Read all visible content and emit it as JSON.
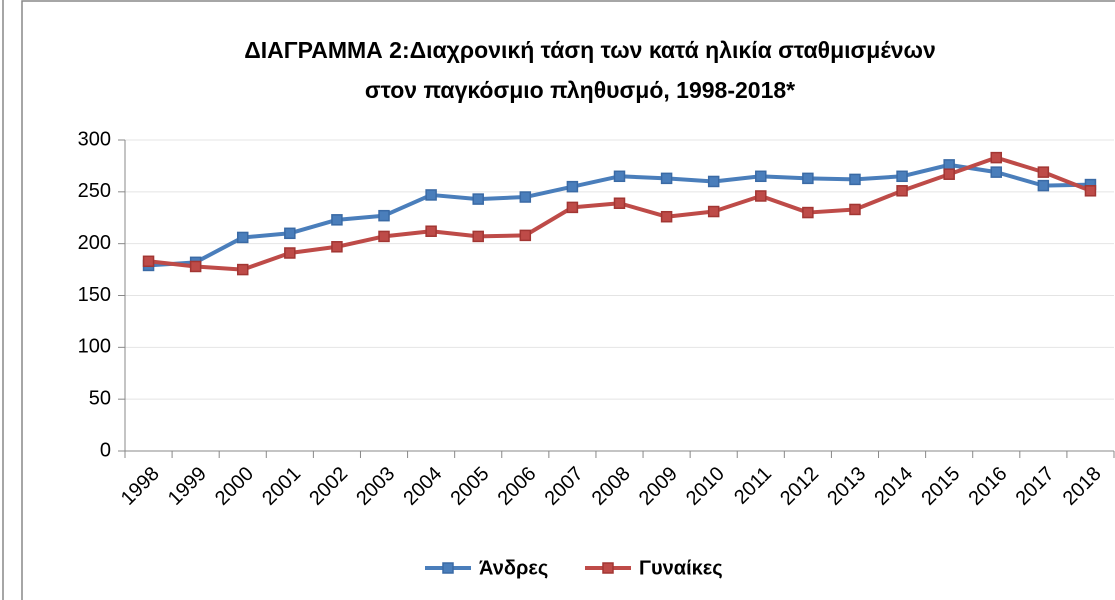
{
  "chart_data": {
    "type": "line",
    "title": [
      "ΔΙΑΓΡΑΜΜΑ 2:Διαχρονική τάση των κατά ηλικία σταθμισμένων",
      "στον παγκόσμιο πληθυσμό, 1998-2018*"
    ],
    "categories": [
      "1998",
      "1999",
      "2000",
      "2001",
      "2002",
      "2003",
      "2004",
      "2005",
      "2006",
      "2007",
      "2008",
      "2009",
      "2010",
      "2011",
      "2012",
      "2013",
      "2014",
      "2015",
      "2016",
      "2017",
      "2018"
    ],
    "series": [
      {
        "name": "Άνδρες",
        "color": "#4a7ebb",
        "edge": "#3a6aa5",
        "values": [
          179,
          182,
          206,
          210,
          223,
          227,
          247,
          243,
          245,
          255,
          265,
          263,
          260,
          265,
          263,
          262,
          265,
          276,
          269,
          256,
          257
        ]
      },
      {
        "name": "Γυναίκες",
        "color": "#be4b48",
        "edge": "#a23633",
        "values": [
          183,
          178,
          175,
          191,
          197,
          207,
          212,
          207,
          208,
          235,
          239,
          226,
          231,
          246,
          230,
          233,
          251,
          267,
          283,
          269,
          251
        ]
      }
    ],
    "ylim": [
      0,
      300
    ],
    "yticks": [
      0,
      50,
      100,
      150,
      200,
      250,
      300
    ],
    "grid": true,
    "legend": "bottom"
  }
}
